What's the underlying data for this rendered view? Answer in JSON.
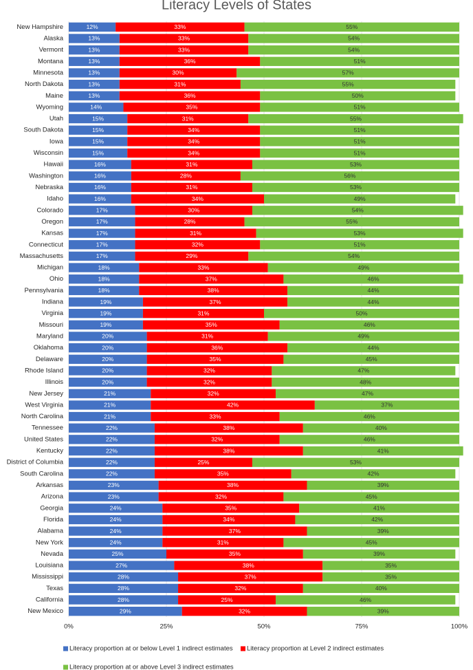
{
  "chart_data": {
    "type": "stacked-bar-horizontal",
    "title": "Literacy Levels of States",
    "categories": [
      "New Hampshire",
      "Alaska",
      "Vermont",
      "Montana",
      "Minnesota",
      "North Dakota",
      "Maine",
      "Wyoming",
      "Utah",
      "South Dakota",
      "Iowa",
      "Wisconsin",
      "Hawaii",
      "Washington",
      "Nebraska",
      "Idaho",
      "Colorado",
      "Oregon",
      "Kansas",
      "Connecticut",
      "Massachusetts",
      "Michigan",
      "Ohio",
      "Pennsylvania",
      "Indiana",
      "Virginia",
      "Missouri",
      "Maryland",
      "Oklahoma",
      "Delaware",
      "Rhode Island",
      "Illinois",
      "New Jersey",
      "West Virginia",
      "North Carolina",
      "Tennessee",
      "United States",
      "Kentucky",
      "District of Columbia",
      "South Carolina",
      "Arkansas",
      "Arizona",
      "Georgia",
      "Florida",
      "Alabama",
      "New York",
      "Nevada",
      "Louisiana",
      "Mississippi",
      "Texas",
      "California",
      "New Mexico"
    ],
    "series": [
      {
        "name": "Literacy proportion at or below Level 1 indirect estimates",
        "color": "#4472c4",
        "values": [
          12,
          13,
          13,
          13,
          13,
          13,
          13,
          14,
          15,
          15,
          15,
          15,
          16,
          16,
          16,
          16,
          17,
          17,
          17,
          17,
          17,
          18,
          18,
          18,
          19,
          19,
          19,
          20,
          20,
          20,
          20,
          20,
          21,
          21,
          21,
          22,
          22,
          22,
          22,
          22,
          23,
          23,
          24,
          24,
          24,
          24,
          25,
          27,
          28,
          28,
          28,
          29
        ],
        "value_labels": [
          "12%",
          "13%",
          "13%",
          "13%",
          "13%",
          "13%",
          "13%",
          "14%",
          "15%",
          "15%",
          "15%",
          "15%",
          "16%",
          "16%",
          "16%",
          "16%",
          "17%",
          "17%",
          "17%",
          "17%",
          "17%",
          "18%",
          "18%",
          "18%",
          "19%",
          "19%",
          "19%",
          "20%",
          "20%",
          "20%",
          "20%",
          "20%",
          "21%",
          "21%",
          "21%",
          "22%",
          "22%",
          "22%",
          "22%",
          "22%",
          "23%",
          "23%",
          "24%",
          "24%",
          "24%",
          "24%",
          "25%",
          "27%",
          "28%",
          "28%",
          "28%",
          "29%"
        ]
      },
      {
        "name": "Literacy proportion at Level 2 indirect estimates",
        "color": "#ff0000",
        "values": [
          33,
          33,
          33,
          36,
          30,
          31,
          36,
          35,
          31,
          34,
          34,
          34,
          31,
          28,
          31,
          34,
          30,
          28,
          31,
          32,
          29,
          33,
          37,
          38,
          37,
          31,
          35,
          31,
          36,
          35,
          32,
          32,
          32,
          42,
          33,
          38,
          32,
          38,
          25,
          35,
          38,
          32,
          35,
          34,
          37,
          31,
          35,
          38,
          37,
          32,
          25,
          32
        ],
        "value_labels": [
          "33%",
          "33%",
          "33%",
          "36%",
          "30%",
          "31%",
          "36%",
          "35%",
          "31%",
          "34%",
          "34%",
          "34%",
          "31%",
          "28%",
          "31%",
          "34%",
          "30%",
          "28%",
          "31%",
          "32%",
          "29%",
          "33%",
          "37%",
          "38%",
          "37%",
          "31%",
          "35%",
          "31%",
          "36%",
          "35%",
          "32%",
          "32%",
          "32%",
          "42%",
          "33%",
          "38%",
          "32%",
          "38%",
          "25%",
          "35%",
          "38%",
          "32%",
          "35%",
          "34%",
          "37%",
          "31%",
          "35%",
          "38%",
          "37%",
          "32%",
          "25%",
          "32%"
        ]
      },
      {
        "name": "Literacy proportion at or above Level 3 indirect estimates",
        "color": "#7ac143",
        "values": [
          55,
          54,
          54,
          51,
          57,
          55,
          50,
          51,
          55,
          51,
          51,
          51,
          53,
          56,
          53,
          49,
          54,
          55,
          53,
          51,
          54,
          49,
          46,
          44,
          44,
          50,
          46,
          49,
          44,
          45,
          47,
          48,
          47,
          37,
          46,
          40,
          46,
          41,
          53,
          42,
          39,
          45,
          41,
          42,
          39,
          45,
          39,
          35,
          35,
          40,
          46,
          39
        ],
        "value_labels": [
          "55%",
          "54%",
          "54%",
          "51%",
          "57%",
          "55%",
          "50%",
          "51%",
          "55%",
          "51%",
          "51%",
          "51%",
          "53%",
          "56%",
          "53%",
          "49%",
          "54%",
          "55%",
          "53%",
          "51%",
          "54%",
          "49%",
          "46%",
          "44%",
          "44%",
          "50%",
          "46%",
          "49%",
          "44%",
          "45%",
          "47%",
          "48%",
          "47%",
          "37%",
          "46%",
          "40%",
          "46%",
          "41%",
          "53%",
          "42%",
          "39%",
          "45%",
          "41%",
          "42%",
          "39%",
          "45%",
          "39%",
          "35%",
          "35%",
          "40%",
          "46%",
          "39%"
        ]
      }
    ],
    "xlim": [
      0,
      100
    ],
    "xticks": [
      {
        "value": 0,
        "label": "0%"
      },
      {
        "value": 25,
        "label": "25%"
      },
      {
        "value": 50,
        "label": "50%"
      },
      {
        "value": 75,
        "label": "75%"
      },
      {
        "value": 100,
        "label": "100%"
      }
    ],
    "grid": true
  }
}
